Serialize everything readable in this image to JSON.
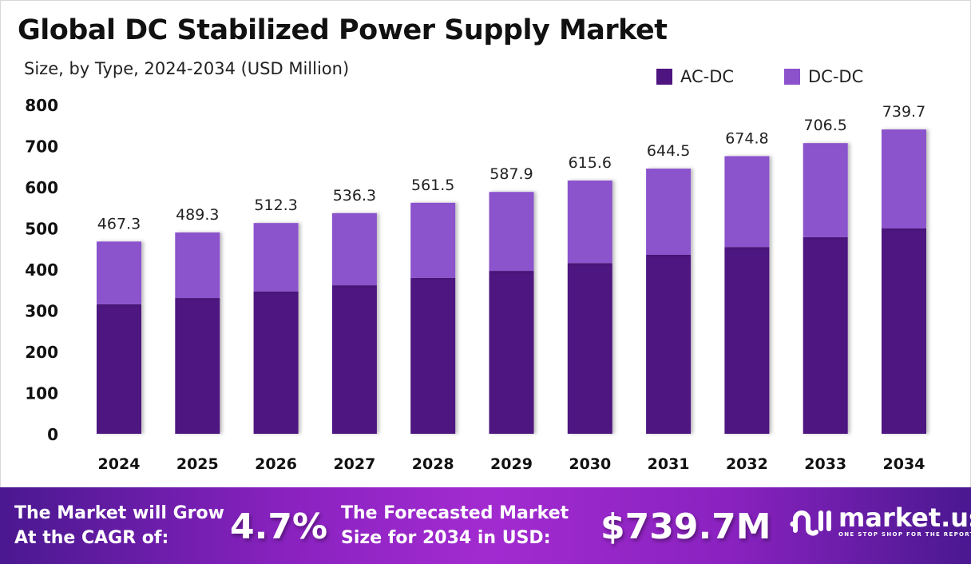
{
  "title": "Global DC Stabilized Power Supply Market",
  "subtitle": "Size, by Type, 2024-2034 (USD Million)",
  "colors": {
    "ac_dc": "#4e1580",
    "dc_dc": "#8b52cc",
    "footer_accent": "#a22bd0"
  },
  "chart_data": {
    "type": "bar",
    "stacked": true,
    "categories": [
      "2024",
      "2025",
      "2026",
      "2027",
      "2028",
      "2029",
      "2030",
      "2031",
      "2032",
      "2033",
      "2034"
    ],
    "series": [
      {
        "name": "AC-DC",
        "values": [
          315,
          330,
          346,
          361,
          379,
          396,
          415,
          435,
          454,
          478,
          499
        ]
      },
      {
        "name": "DC-DC",
        "values": [
          152.3,
          159.3,
          166.3,
          175.3,
          182.5,
          191.9,
          200.6,
          209.5,
          220.8,
          228.5,
          240.7
        ]
      }
    ],
    "totals": [
      "467.3",
      "489.3",
      "512.3",
      "536.3",
      "561.5",
      "587.9",
      "615.6",
      "644.5",
      "674.8",
      "706.5",
      "739.7"
    ],
    "yticks": [
      "0",
      "100",
      "200",
      "300",
      "400",
      "500",
      "600",
      "700",
      "800"
    ],
    "ylim": [
      0,
      800
    ],
    "grid": false,
    "legend_position": "top-right"
  },
  "footer": {
    "cagr_label_1": "The Market will Grow",
    "cagr_label_2": "At the CAGR of:",
    "cagr_value": "4.7%",
    "forecast_label_1": "The Forecasted Market",
    "forecast_label_2": "Size for 2034 in USD:",
    "forecast_value": "$739.7M",
    "logo_name": "market.us",
    "logo_tagline": "ONE STOP SHOP FOR THE REPORTS"
  }
}
